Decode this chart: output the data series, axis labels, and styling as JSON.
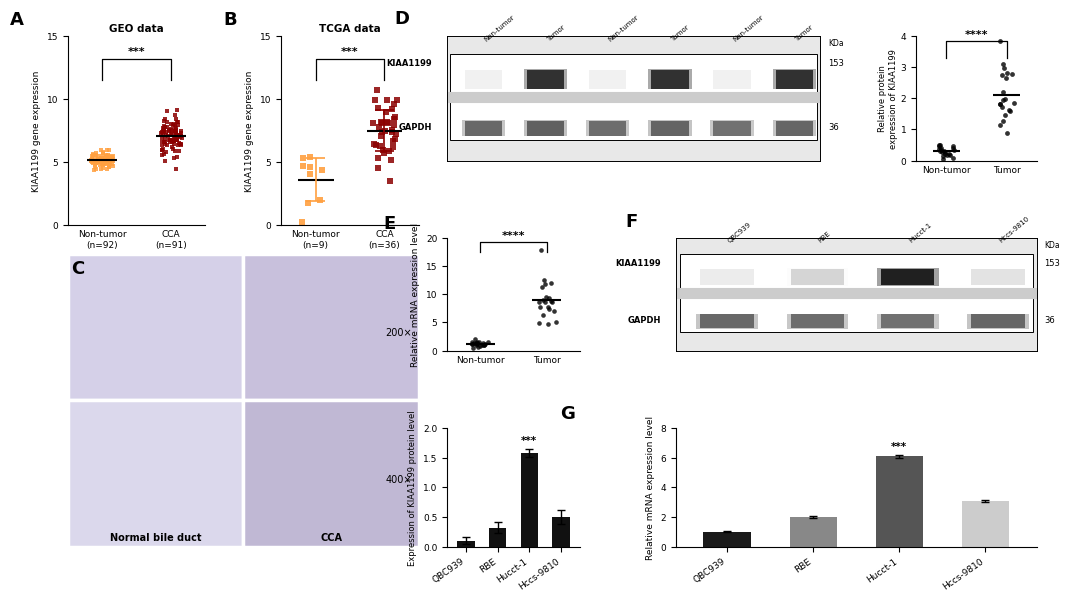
{
  "panel_A": {
    "title": "GEO data",
    "ylabel": "KIAA1199 gene expression",
    "group_labels": [
      "Non-tumor\n(n=92)",
      "CCA\n(n=91)"
    ],
    "group_colors": [
      "#FFA040",
      "#8B0000"
    ],
    "ylim": [
      0,
      15
    ],
    "yticks": [
      0,
      5,
      10,
      15
    ],
    "significance": "***",
    "nt_n": 92,
    "nt_mean": 5.1,
    "nt_std": 0.35,
    "cca_n": 91,
    "cca_mean": 7.0,
    "cca_std": 0.85
  },
  "panel_B": {
    "title": "TCGA data",
    "ylabel": "KIAA1199 gene expression",
    "group_labels": [
      "Non-tumor\n(n=9)",
      "CCA\n(n=36)"
    ],
    "group_colors": [
      "#FFA040",
      "#8B0000"
    ],
    "ylim": [
      0,
      15
    ],
    "yticks": [
      0,
      5,
      10,
      15
    ],
    "significance": "***",
    "nt_n": 9,
    "nt_mean": 3.7,
    "nt_std": 1.8,
    "cca_n": 36,
    "cca_mean": 7.6,
    "cca_std": 1.5
  },
  "panel_D_scatter": {
    "ylabel": "Relative protein\nexpression of KIAA1199",
    "group_labels": [
      "Non-tumor",
      "Tumor"
    ],
    "ylim": [
      0,
      4
    ],
    "yticks": [
      0,
      1,
      2,
      3,
      4
    ],
    "significance": "****",
    "nt_n": 20,
    "nt_mean": 0.3,
    "nt_std": 0.12,
    "tumor_n": 20,
    "tumor_mean": 2.2,
    "tumor_std": 0.55
  },
  "panel_E": {
    "ylabel": "Relative mRNA expression level",
    "group_labels": [
      "Non-tumor",
      "Tumor"
    ],
    "ylim": [
      0,
      20
    ],
    "yticks": [
      0,
      5,
      10,
      15,
      20
    ],
    "significance": "****",
    "nt_n": 20,
    "nt_mean": 1.2,
    "nt_std": 0.4,
    "tumor_n": 20,
    "tumor_mean": 8.5,
    "tumor_std": 2.0
  },
  "panel_F_bar": {
    "categories": [
      "QBC939",
      "RBE",
      "Hucct-1",
      "Hccs-9810"
    ],
    "values": [
      0.1,
      0.32,
      1.58,
      0.5
    ],
    "errors": [
      0.06,
      0.09,
      0.07,
      0.12
    ],
    "ylabel": "Expression of KIAA1199 protein level",
    "ylim": [
      0,
      2.0
    ],
    "yticks": [
      0.0,
      0.5,
      1.0,
      1.5,
      2.0
    ],
    "bar_color": "#111111",
    "sig_idx": 2,
    "sig_text": "***"
  },
  "panel_G": {
    "categories": [
      "QBC939",
      "RBE",
      "Hucct-1",
      "Hccs-9810"
    ],
    "values": [
      1.0,
      2.0,
      6.1,
      3.05
    ],
    "errors": [
      0.05,
      0.08,
      0.1,
      0.07
    ],
    "ylabel": "Relative mRNA expression level",
    "ylim": [
      0,
      8
    ],
    "yticks": [
      0,
      2,
      4,
      6,
      8
    ],
    "bar_colors": [
      "#1a1a1a",
      "#888888",
      "#555555",
      "#cccccc"
    ],
    "sig_idx": 2,
    "sig_text": "***"
  },
  "wb_D": {
    "lanes": [
      "Non-tumor",
      "Tumor",
      "Non-tumor",
      "Tumor",
      "Non-tumor",
      "Tumor"
    ],
    "kiaa_intensities": [
      0.06,
      0.88,
      0.06,
      0.88,
      0.06,
      0.88
    ],
    "gapdh_intensities": [
      0.72,
      0.76,
      0.7,
      0.74,
      0.68,
      0.73
    ],
    "kda_kiaa": "153",
    "kda_gapdh": "36"
  },
  "wb_F": {
    "lanes": [
      "QBC939",
      "RBE",
      "Hucct-1",
      "Hccs-9810"
    ],
    "kiaa_intensities": [
      0.08,
      0.18,
      0.95,
      0.12
    ],
    "gapdh_intensities": [
      0.72,
      0.7,
      0.68,
      0.73
    ],
    "kda_kiaa": "153",
    "kda_gapdh": "36"
  },
  "bg": "#ffffff"
}
